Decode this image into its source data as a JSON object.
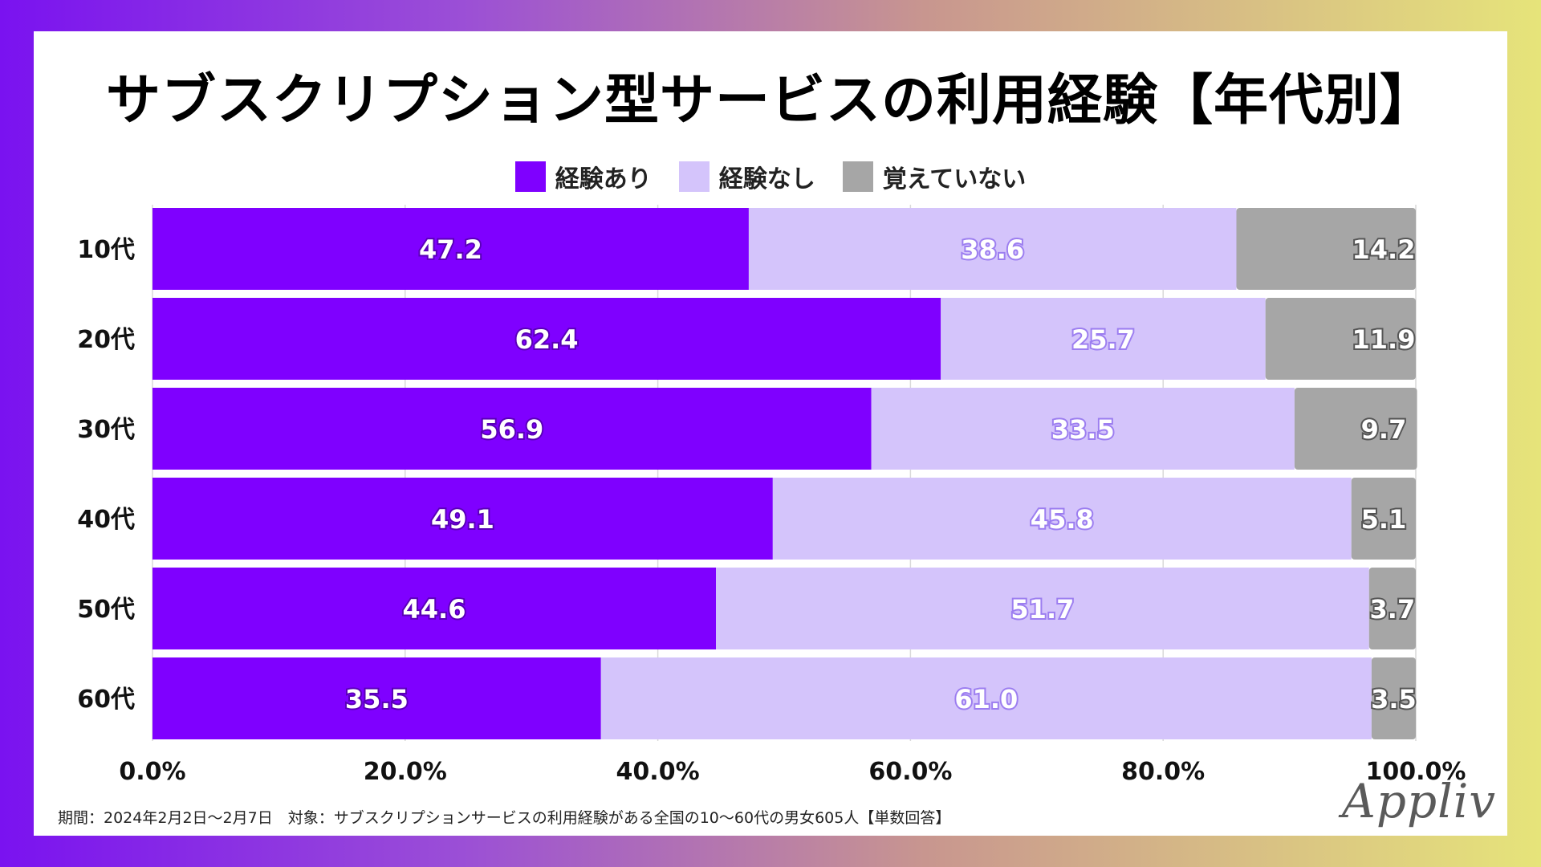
{
  "title": "サブスクリプション型サービスの利用経験【年代別】",
  "chart_data": {
    "type": "bar",
    "orientation": "horizontal",
    "stacked": true,
    "categories": [
      "10代",
      "20代",
      "30代",
      "40代",
      "50代",
      "60代"
    ],
    "series": [
      {
        "name": "経験あり",
        "color": "#7f00ff",
        "values": [
          47.2,
          62.4,
          56.9,
          49.1,
          44.6,
          35.5
        ]
      },
      {
        "name": "経験なし",
        "color": "#d4c4fb",
        "values": [
          38.6,
          25.7,
          33.5,
          45.8,
          51.7,
          61.0
        ]
      },
      {
        "name": "覚えていない",
        "color": "#a6a6a6",
        "values": [
          14.2,
          11.9,
          9.7,
          5.1,
          3.7,
          3.5
        ]
      }
    ],
    "value_labels": [
      [
        "47.2",
        "38.6",
        "14.2"
      ],
      [
        "62.4",
        "25.7",
        "11.9"
      ],
      [
        "56.9",
        "33.5",
        "9.7"
      ],
      [
        "49.1",
        "45.8",
        "5.1"
      ],
      [
        "44.6",
        "51.7",
        "3.7"
      ],
      [
        "35.5",
        "61.0",
        "3.5"
      ]
    ],
    "xlim": [
      0,
      100
    ],
    "xticks": [
      "0.0%",
      "20.0%",
      "40.0%",
      "60.0%",
      "80.0%",
      "100.0%"
    ],
    "grid": true,
    "legend_position": "top-center"
  },
  "legend": {
    "items": [
      {
        "label": "経験あり",
        "color": "#7f00ff"
      },
      {
        "label": "経験なし",
        "color": "#d4c4fb"
      },
      {
        "label": "覚えていない",
        "color": "#a6a6a6"
      }
    ]
  },
  "footnote": "期間：2024年2月2日〜2月7日　対象：サブスクリプションサービスの利用経験がある全国の10〜60代の男女605人【単数回答】",
  "logo": "Appliv"
}
